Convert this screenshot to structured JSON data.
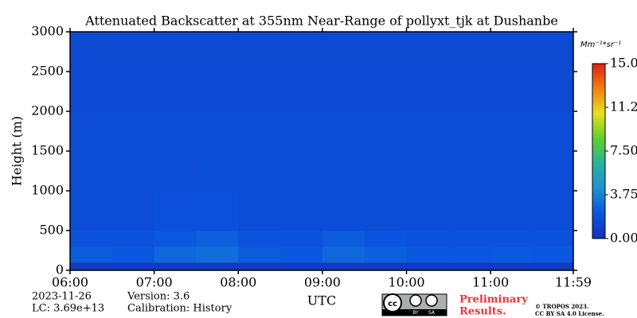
{
  "chart_data": {
    "type": "heatmap",
    "title": "Attenuated Backscatter at 355nm Near-Range of pollyxt_tjk at Dushanbe",
    "ylabel": "Height (m)",
    "xlabel": "UTC",
    "xlim": [
      6,
      11.983
    ],
    "xticks": [
      {
        "value": 6,
        "label": "06:00"
      },
      {
        "value": 7,
        "label": "07:00"
      },
      {
        "value": 8,
        "label": "08:00"
      },
      {
        "value": 9,
        "label": "09:00"
      },
      {
        "value": 10,
        "label": "10:00"
      },
      {
        "value": 11,
        "label": "11:00"
      },
      {
        "value": 11.983,
        "label": "11:59"
      }
    ],
    "ylim": [
      0,
      3000
    ],
    "yticks": [
      0,
      500,
      1000,
      1500,
      2000,
      2500,
      3000
    ],
    "x_bins": [
      6,
      6.5,
      7,
      7.5,
      8,
      8.5,
      9,
      9.5,
      10,
      10.5,
      11,
      11.5,
      11.983
    ],
    "y_bins": [
      0,
      100,
      300,
      500,
      1000,
      1500,
      2000,
      2500,
      3000
    ],
    "z": [
      [
        0.6,
        0.6,
        0.6,
        0.6,
        0.6,
        0.6,
        0.6,
        0.6,
        0.6,
        0.6,
        0.6,
        0.6
      ],
      [
        2.4,
        2.2,
        2.8,
        3.0,
        2.4,
        2.2,
        2.8,
        2.5,
        2.2,
        2.2,
        2.3,
        2.2
      ],
      [
        1.9,
        1.9,
        2.3,
        2.5,
        2.0,
        1.9,
        2.4,
        2.1,
        1.9,
        1.9,
        1.9,
        1.9
      ],
      [
        1.7,
        1.7,
        1.8,
        1.8,
        1.7,
        1.7,
        1.7,
        1.7,
        1.7,
        1.7,
        1.7,
        1.7
      ],
      [
        1.6,
        1.6,
        1.6,
        1.7,
        1.6,
        1.6,
        1.6,
        1.6,
        1.6,
        1.6,
        1.6,
        1.6
      ],
      [
        1.6,
        1.6,
        1.6,
        1.6,
        1.6,
        1.6,
        1.6,
        1.6,
        1.6,
        1.6,
        1.6,
        1.6
      ],
      [
        1.5,
        1.5,
        1.5,
        1.5,
        1.5,
        1.5,
        1.5,
        1.5,
        1.5,
        1.5,
        1.5,
        1.5
      ],
      [
        1.5,
        1.5,
        1.5,
        1.5,
        1.5,
        1.5,
        1.5,
        1.5,
        1.5,
        1.5,
        1.5,
        1.5
      ]
    ],
    "clim": [
      0,
      15
    ],
    "colormap": [
      "#1530b8",
      "#0a55e0",
      "#1e90d0",
      "#2bb0a0",
      "#5cd12a",
      "#e8e020",
      "#f08010",
      "#e02010"
    ],
    "colorbar_label": "Mm⁻¹*sr⁻¹",
    "colorbar_ticks": [
      {
        "value": 0,
        "label": "0.00"
      },
      {
        "value": 3.75,
        "label": "3.75"
      },
      {
        "value": 7.5,
        "label": "7.50"
      },
      {
        "value": 11.25,
        "label": "11.25"
      },
      {
        "value": 15,
        "label": "15.00"
      }
    ],
    "annotations": {
      "date": "2023-11-26",
      "lc": "LC: 3.69e+13",
      "version": "Version: 3.6",
      "calibration": "Calibration: History",
      "status": [
        "Preliminary",
        "Results."
      ],
      "copyright": [
        "© TROPOS 2023.",
        "CC BY SA 4.0 License."
      ],
      "license_badge": [
        "cc",
        "BY",
        "SA"
      ]
    }
  }
}
